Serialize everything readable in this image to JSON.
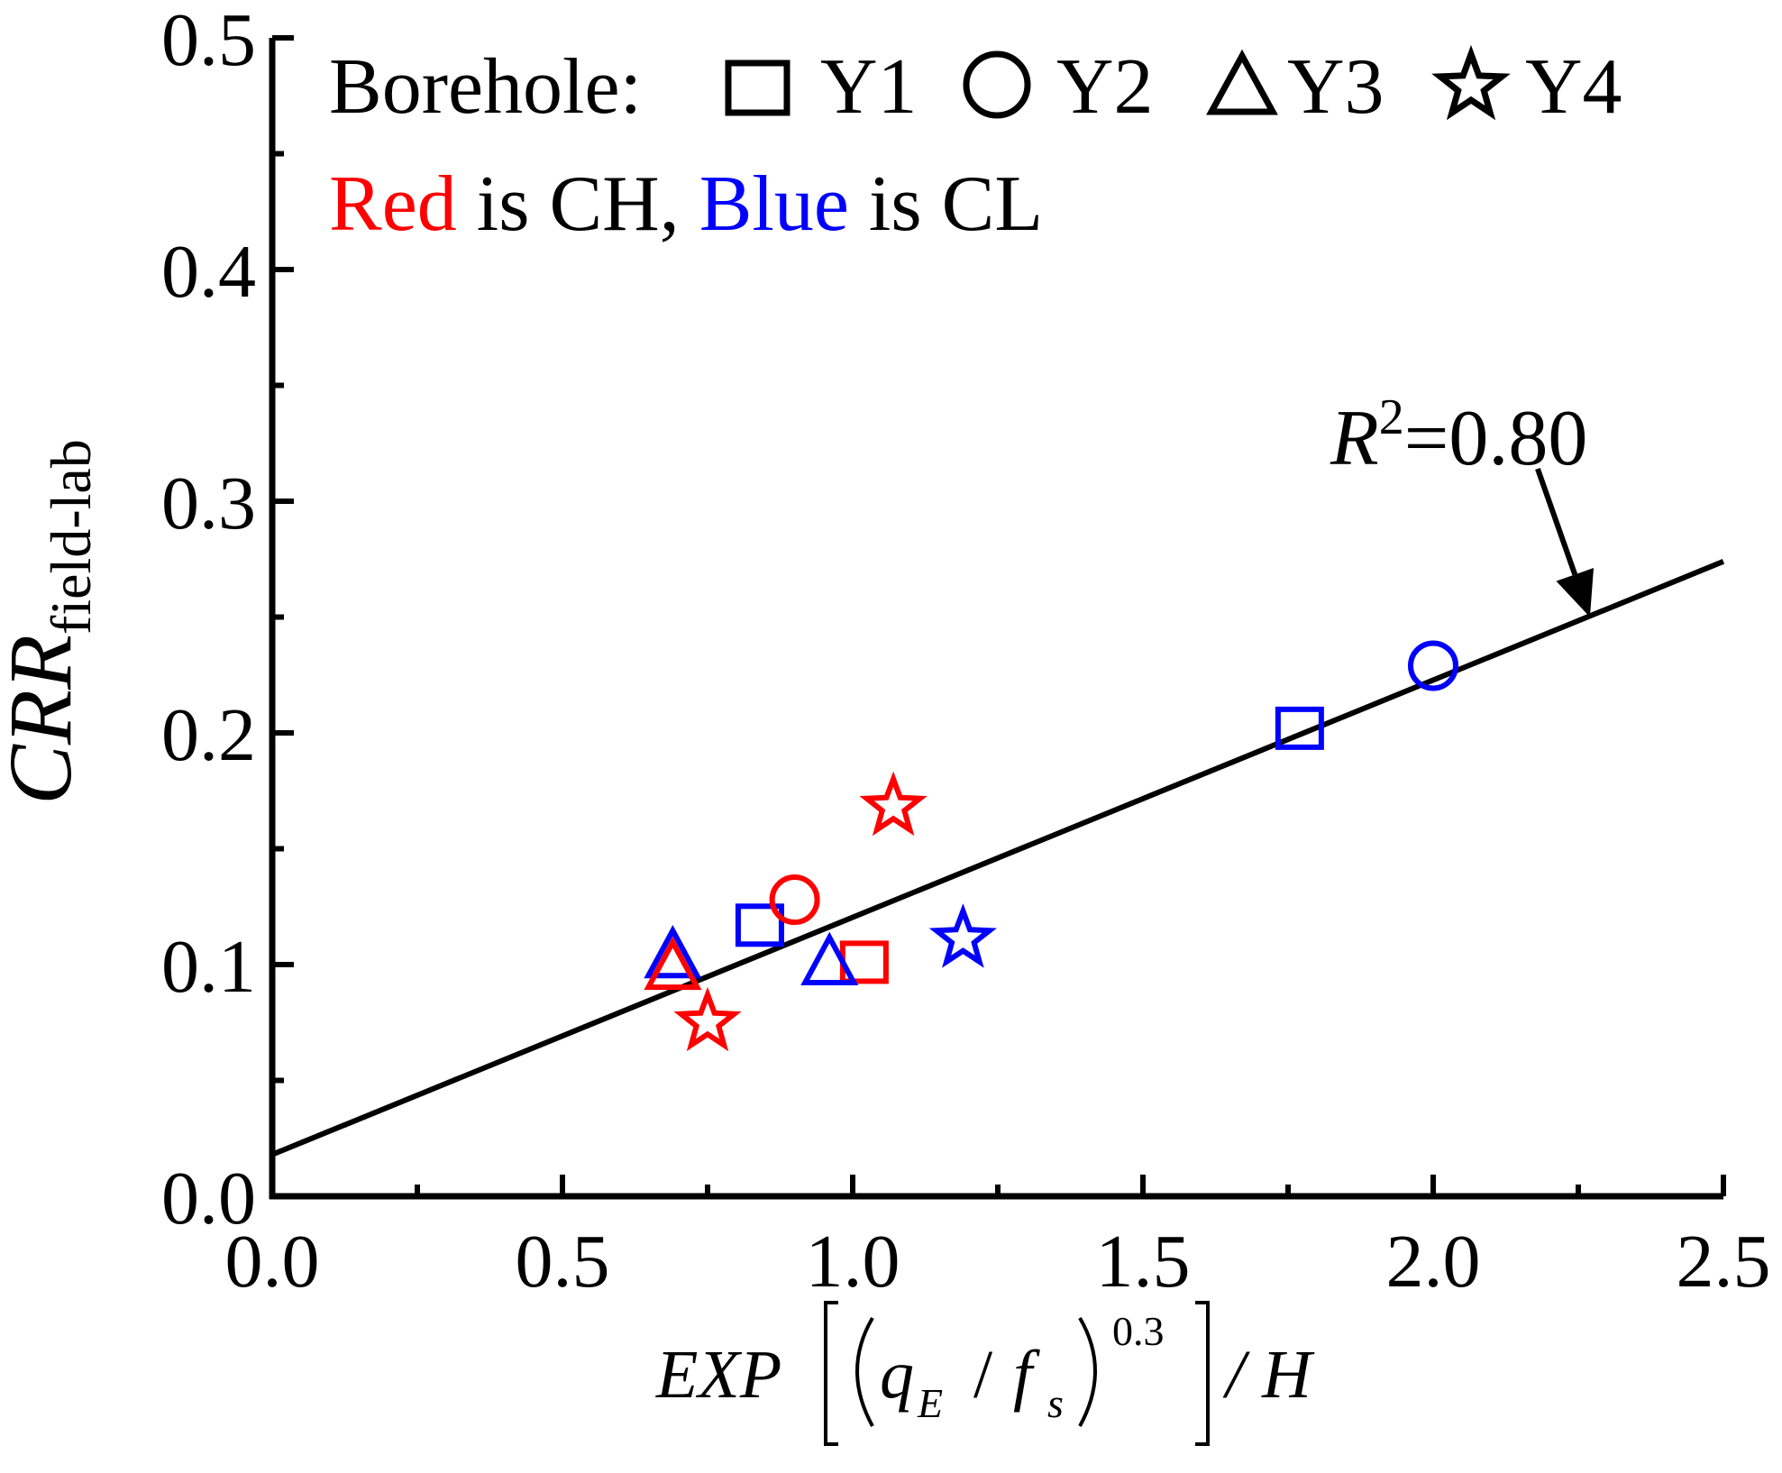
{
  "chart_data": {
    "type": "scatter",
    "xlim": [
      0.0,
      2.5
    ],
    "ylim": [
      0.0,
      0.5
    ],
    "x_ticks": [
      "0.0",
      "0.5",
      "1.0",
      "1.5",
      "2.0",
      "2.5"
    ],
    "y_ticks": [
      "0.0",
      "0.1",
      "0.2",
      "0.3",
      "0.4",
      "0.5"
    ],
    "x_minor_step": 0.25,
    "y_minor_step": 0.05,
    "grid": false,
    "ylabel": {
      "main": "CRR",
      "sub": "field-lab"
    },
    "xlabel": {
      "prefix": "EXP",
      "q": "q",
      "q_sub": "E",
      "slash": "/",
      "f": "f",
      "f_sub": "s",
      "exponent": "0.3",
      "suffix": "/ H"
    },
    "legend": {
      "title": "Borehole:",
      "entries": [
        {
          "marker": "square",
          "label": "Y1"
        },
        {
          "marker": "circle",
          "label": "Y2"
        },
        {
          "marker": "triangle",
          "label": "Y3"
        },
        {
          "marker": "star",
          "label": "Y4"
        }
      ],
      "color_note": {
        "red_word": "Red",
        "red_rest": " is CH, ",
        "blue_word": "Blue",
        "blue_rest": " is CL"
      }
    },
    "colors": {
      "CH": "#ff0000",
      "CL": "#0000ff",
      "line": "#000000"
    },
    "points": [
      {
        "borehole": "Y1",
        "marker": "square",
        "soil": "CL",
        "x": 1.77,
        "y": 0.202
      },
      {
        "borehole": "Y1",
        "marker": "square",
        "soil": "CL",
        "x": 0.84,
        "y": 0.117
      },
      {
        "borehole": "Y1",
        "marker": "square",
        "soil": "CH",
        "x": 1.02,
        "y": 0.101
      },
      {
        "borehole": "Y2",
        "marker": "circle",
        "soil": "CL",
        "x": 2.0,
        "y": 0.229
      },
      {
        "borehole": "Y2",
        "marker": "circle",
        "soil": "CH",
        "x": 0.9,
        "y": 0.128
      },
      {
        "borehole": "Y3",
        "marker": "triangle",
        "soil": "CL",
        "x": 0.69,
        "y": 0.103
      },
      {
        "borehole": "Y3",
        "marker": "triangle",
        "soil": "CL",
        "x": 0.96,
        "y": 0.1
      },
      {
        "borehole": "Y3",
        "marker": "triangle",
        "soil": "CH",
        "x": 0.69,
        "y": 0.098
      },
      {
        "borehole": "Y4",
        "marker": "star",
        "soil": "CH",
        "x": 1.07,
        "y": 0.168
      },
      {
        "borehole": "Y4",
        "marker": "star",
        "soil": "CH",
        "x": 0.75,
        "y": 0.075
      },
      {
        "borehole": "Y4",
        "marker": "star",
        "soil": "CL",
        "x": 1.19,
        "y": 0.111
      }
    ],
    "fit_line": {
      "x": [
        0.0,
        2.5
      ],
      "y": [
        0.018,
        0.274
      ]
    },
    "annotation": {
      "r": "R",
      "sup": "2",
      "rest": "=0.80",
      "arrow_target": {
        "x": 2.27,
        "y": 0.25
      },
      "arrow_tail": {
        "x": 2.18,
        "y": 0.314
      }
    }
  }
}
